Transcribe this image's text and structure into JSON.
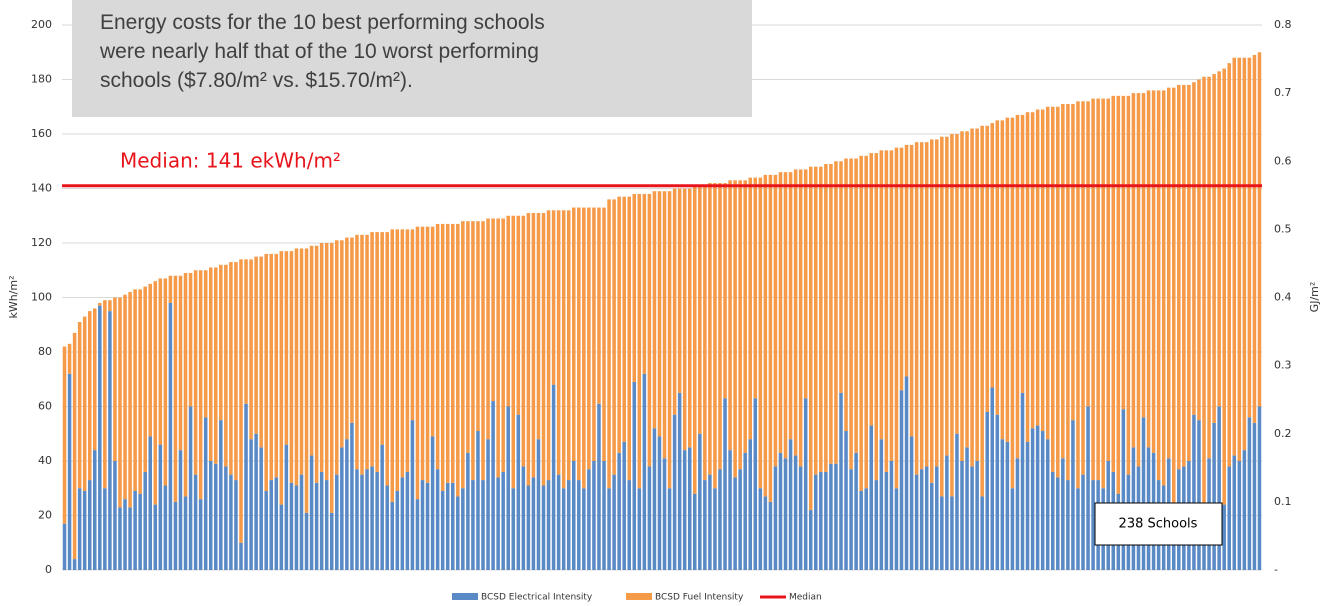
{
  "chart_data": {
    "type": "bar",
    "stacked": true,
    "ylabel": "kWh/m²",
    "y2label": "GJ/m²",
    "ylim": [
      0,
      200
    ],
    "yticks": [
      0,
      20,
      40,
      60,
      80,
      100,
      120,
      140,
      160,
      180,
      200
    ],
    "y2lim": [
      0,
      0.8
    ],
    "y2ticks": [
      {
        "value": 0,
        "label": "-"
      },
      0.1,
      0.2,
      0.3,
      0.4,
      0.5,
      0.6,
      0.7,
      0.8
    ],
    "grid": true,
    "callout": [
      "Energy costs for the 10 best performing schools",
      "were nearly half that of the 10 worst performing",
      "schools ($7.80/m² vs. $15.70/m²)."
    ],
    "median_label": "Median: 141 ekWh/m²",
    "count_label": "238 Schools",
    "median": {
      "name": "Median",
      "color": "#e8141b",
      "value": 141
    },
    "series": [
      {
        "name": "BCSD Electrical Intensity",
        "color": "#5a8ac6",
        "values": [
          17,
          72,
          4,
          30,
          29,
          33,
          44,
          97,
          30,
          95,
          40,
          23,
          26,
          23,
          29,
          28,
          36,
          49,
          24,
          46,
          31,
          98,
          25,
          44,
          27,
          60,
          35,
          26,
          56,
          40,
          39,
          55,
          38,
          35,
          33,
          10,
          61,
          48,
          50,
          45,
          29,
          33,
          34,
          24,
          46,
          32,
          31,
          35,
          21,
          42,
          32,
          36,
          33,
          21,
          35,
          45,
          48,
          54,
          37,
          35,
          37,
          38,
          36,
          46,
          31,
          25,
          29,
          34,
          36,
          55,
          26,
          33,
          32,
          49,
          37,
          29,
          32,
          32,
          27,
          30,
          43,
          33,
          51,
          33,
          48,
          62,
          34,
          36,
          60,
          30,
          57,
          38,
          31,
          34,
          48,
          31,
          33,
          68,
          35,
          30,
          33,
          40,
          33,
          30,
          37,
          40,
          61,
          40,
          30,
          35,
          43,
          47,
          33,
          69,
          30,
          72,
          38,
          52,
          49,
          41,
          30,
          57,
          65,
          44,
          45,
          28,
          50,
          33,
          35,
          30,
          37,
          63,
          44,
          34,
          37,
          43,
          48,
          63,
          30,
          27,
          25,
          38,
          43,
          41,
          48,
          42,
          38,
          63,
          22,
          35,
          36,
          36,
          39,
          39,
          65,
          51,
          37,
          43,
          29,
          30,
          53,
          33,
          48,
          36,
          40,
          30,
          66,
          71,
          49,
          35,
          37,
          38,
          32,
          38,
          27,
          42,
          27,
          50,
          40,
          45,
          38,
          40,
          27,
          58,
          67,
          57,
          48,
          47,
          30,
          41,
          65,
          47,
          52,
          53,
          51,
          48,
          36,
          34,
          41,
          33,
          55,
          30,
          35,
          60,
          33,
          33,
          30,
          40,
          36,
          28,
          59,
          35,
          45,
          38,
          56,
          45,
          43,
          33,
          31,
          41,
          24,
          37,
          38,
          40,
          57,
          55,
          20,
          41,
          54,
          60,
          24,
          38,
          42,
          40,
          44,
          56,
          54,
          60
        ]
      },
      {
        "name": "BCSD Fuel Intensity",
        "color": "#f59a48",
        "values": [
          65,
          11,
          83,
          61,
          64,
          62,
          52,
          1,
          69,
          4,
          60,
          77,
          75,
          79,
          74,
          75,
          68,
          56,
          82,
          61,
          76,
          10,
          83,
          64,
          82,
          49,
          75,
          84,
          54,
          71,
          72,
          57,
          74,
          78,
          80,
          104,
          53,
          66,
          65,
          70,
          87,
          83,
          82,
          93,
          71,
          85,
          87,
          83,
          97,
          77,
          87,
          84,
          87,
          99,
          86,
          76,
          74,
          68,
          86,
          88,
          86,
          86,
          88,
          78,
          93,
          100,
          96,
          91,
          89,
          70,
          100,
          93,
          94,
          77,
          90,
          98,
          95,
          95,
          100,
          98,
          85,
          95,
          77,
          95,
          81,
          67,
          95,
          93,
          70,
          100,
          73,
          92,
          100,
          97,
          83,
          100,
          99,
          64,
          97,
          102,
          99,
          93,
          100,
          103,
          96,
          93,
          72,
          93,
          106,
          101,
          94,
          90,
          104,
          69,
          108,
          66,
          100,
          87,
          90,
          98,
          109,
          83,
          75,
          96,
          95,
          113,
          91,
          108,
          107,
          112,
          105,
          79,
          99,
          109,
          106,
          100,
          96,
          81,
          114,
          118,
          120,
          107,
          103,
          105,
          98,
          105,
          109,
          84,
          126,
          113,
          112,
          113,
          110,
          111,
          85,
          100,
          114,
          108,
          123,
          122,
          100,
          120,
          106,
          118,
          114,
          125,
          89,
          85,
          107,
          122,
          120,
          119,
          126,
          120,
          132,
          117,
          133,
          110,
          121,
          116,
          124,
          122,
          136,
          105,
          97,
          108,
          117,
          119,
          136,
          126,
          102,
          121,
          116,
          116,
          118,
          122,
          134,
          136,
          130,
          138,
          116,
          142,
          137,
          112,
          140,
          140,
          143,
          133,
          138,
          146,
          115,
          139,
          130,
          137,
          119,
          131,
          133,
          143,
          145,
          136,
          153,
          141,
          140,
          138,
          122,
          125,
          161,
          140,
          128,
          123,
          160,
          148,
          146,
          148,
          144,
          132,
          135,
          130
        ]
      }
    ]
  }
}
